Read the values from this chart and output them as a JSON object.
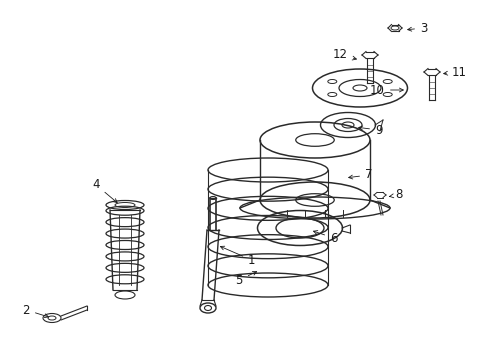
{
  "background_color": "#ffffff",
  "fig_width": 4.89,
  "fig_height": 3.6,
  "dpi": 100,
  "line_color": "#2a2a2a",
  "text_color": "#1a1a1a",
  "label_fontsize": 8.5
}
